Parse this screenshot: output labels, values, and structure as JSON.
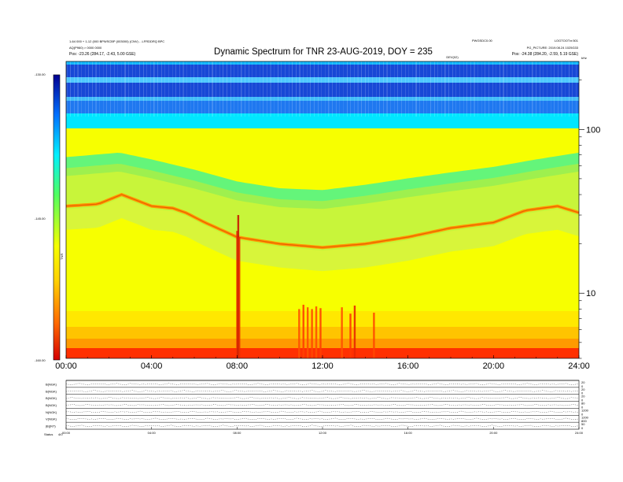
{
  "chart_data": [
    {
      "type": "heatmap",
      "title": "Dynamic Spectrum for TNR 23-AUG-2019, DOY = 235",
      "header_left": [
        "1-64 000 + 1-12 (000 BPWSCBP (003000) (CNV) - .LFRDDRQ BPC",
        "AQ(P960) > 0000 0000",
        "Pos:   -23.26 (284.17, -2.43, 5.00 GSE)"
      ],
      "header_right": [
        "PWGSDC0.00",
        "LOGTOOT:n:501",
        "PG_PICTURE: 2019.08.24 1025G33",
        "Pos:   -24.38 (284.20, -2.59, 5.19 GSE)"
      ],
      "header_center_small": "DEV(02)",
      "corner_label": "kHz",
      "colorbar": {
        "label": "TNR",
        "ticks": [
          "-130.00",
          "-145.00",
          "-160.00"
        ],
        "stops": [
          {
            "offset": 0.0,
            "color": "#d40000"
          },
          {
            "offset": 0.13,
            "color": "#ff6a00"
          },
          {
            "offset": 0.28,
            "color": "#ffd200"
          },
          {
            "offset": 0.4,
            "color": "#f5ff00"
          },
          {
            "offset": 0.58,
            "color": "#4fff60"
          },
          {
            "offset": 0.72,
            "color": "#00f0ff"
          },
          {
            "offset": 0.86,
            "color": "#0070ff"
          },
          {
            "offset": 1.0,
            "color": "#000090"
          }
        ]
      },
      "xticks": [
        "00:00",
        "04:00",
        "08:00",
        "12:00",
        "16:00",
        "20:00",
        "24:00"
      ],
      "xlim_hours": [
        0,
        24
      ],
      "yaxis": {
        "scale": "log",
        "ticks": [
          "100",
          "10"
        ],
        "tick_values_khz": [
          100,
          10
        ],
        "ylim_khz": [
          4,
          260
        ]
      },
      "band_colors": {
        "top_dark": "#1848d6",
        "top_mid": "#1f78f0",
        "upper_cyan": "#00e6ff",
        "upper_green": "#64f57a",
        "yellow_green": "#c8f53a",
        "yellow": "#f7ff00",
        "low_yellow": "#ffe800",
        "orange": "#ff9a00",
        "bottom_red": "#ff3000"
      },
      "green_boundary_khz": [
        {
          "hour": 0,
          "khz": 62
        },
        {
          "hour": 2.5,
          "khz": 66
        },
        {
          "hour": 4,
          "khz": 60
        },
        {
          "hour": 6,
          "khz": 52
        },
        {
          "hour": 8,
          "khz": 44
        },
        {
          "hour": 10,
          "khz": 40
        },
        {
          "hour": 12,
          "khz": 39
        },
        {
          "hour": 14,
          "khz": 42
        },
        {
          "hour": 16,
          "khz": 46
        },
        {
          "hour": 18,
          "khz": 50
        },
        {
          "hour": 20,
          "khz": 54
        },
        {
          "hour": 22,
          "khz": 60
        },
        {
          "hour": 24,
          "khz": 66
        }
      ],
      "orange_boundary_khz": [
        {
          "hour": 0,
          "khz": 34
        },
        {
          "hour": 1.5,
          "khz": 35
        },
        {
          "hour": 2.6,
          "khz": 40
        },
        {
          "hour": 4,
          "khz": 34
        },
        {
          "hour": 5,
          "khz": 33
        },
        {
          "hour": 5.6,
          "khz": 31
        },
        {
          "hour": 6.5,
          "khz": 27
        },
        {
          "hour": 8,
          "khz": 22
        },
        {
          "hour": 10,
          "khz": 20
        },
        {
          "hour": 12,
          "khz": 19
        },
        {
          "hour": 14,
          "khz": 20
        },
        {
          "hour": 16,
          "khz": 22
        },
        {
          "hour": 18,
          "khz": 25
        },
        {
          "hour": 20,
          "khz": 27
        },
        {
          "hour": 21.5,
          "khz": 32
        },
        {
          "hour": 23,
          "khz": 34
        },
        {
          "hour": 24,
          "khz": 31
        }
      ],
      "radio_bursts": [
        {
          "hour": 8.0,
          "top_khz": 24,
          "color": "#e83000"
        },
        {
          "hour": 8.05,
          "top_khz": 30,
          "color": "#c81800"
        },
        {
          "hour": 8.1,
          "top_khz": 22,
          "color": "#e83000"
        },
        {
          "hour": 10.9,
          "top_khz": 8,
          "color": "#ff5000"
        },
        {
          "hour": 11.1,
          "top_khz": 8.5,
          "color": "#ff4000"
        },
        {
          "hour": 11.3,
          "top_khz": 8.2,
          "color": "#ff5000"
        },
        {
          "hour": 11.5,
          "top_khz": 8,
          "color": "#ff4800"
        },
        {
          "hour": 11.7,
          "top_khz": 8.3,
          "color": "#ff5000"
        },
        {
          "hour": 11.9,
          "top_khz": 8.1,
          "color": "#ff4000"
        },
        {
          "hour": 12.9,
          "top_khz": 8.2,
          "color": "#ff5000"
        },
        {
          "hour": 13.3,
          "top_khz": 7.5,
          "color": "#ff3800"
        },
        {
          "hour": 13.5,
          "top_khz": 8.4,
          "color": "#e82800"
        },
        {
          "hour": 14.4,
          "top_khz": 7.6,
          "color": "#ff4800"
        }
      ]
    },
    {
      "type": "line",
      "panel": "solar wind key parameters",
      "rows": [
        {
          "label": "B(NGK)",
          "right_ticks": [
            "20",
            "0"
          ]
        },
        {
          "label": "B(NGK)",
          "right_ticks": [
            "20",
            "0"
          ]
        },
        {
          "label": "B(NGK)",
          "right_ticks": [
            "20",
            "0"
          ]
        },
        {
          "label": "B(NGK)",
          "right_ticks": [
            "80",
            "0"
          ]
        },
        {
          "label": "N(NGK)",
          "right_ticks": [
            "1200",
            "0"
          ]
        },
        {
          "label": "V(NGK)",
          "right_ticks": [
            "1200",
            "800"
          ]
        },
        {
          "label": "|B|(NT)",
          "right_ticks": [
            "50",
            "0"
          ]
        }
      ],
      "xticks": [
        "00:00",
        "04:00",
        "08:00",
        "12:00",
        "16:00",
        "20:00",
        "24:00"
      ],
      "footer_label": "Status",
      "footer_value": "4/0"
    }
  ]
}
